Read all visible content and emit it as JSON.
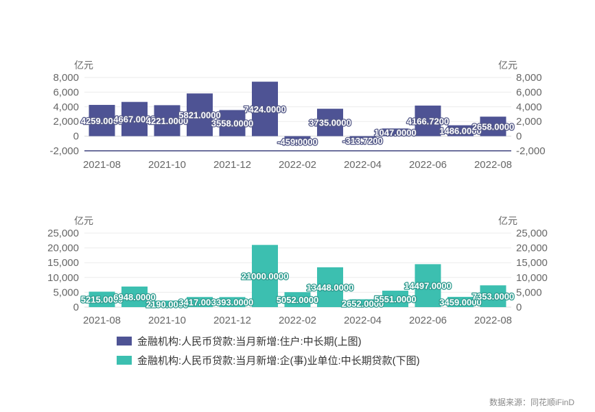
{
  "chart_data": [
    {
      "type": "bar",
      "name": "上图",
      "unit_left": "亿元",
      "unit_right": "亿元",
      "categories": [
        "2021-08",
        "2021-09",
        "2021-10",
        "2021-11",
        "2021-12",
        "2022-01",
        "2022-02",
        "2022-03",
        "2022-04",
        "2022-05",
        "2022-06",
        "2022-07",
        "2022-08"
      ],
      "x_tick_labels": [
        "2021-08",
        "2021-10",
        "2021-12",
        "2022-02",
        "2022-04",
        "2022-06",
        "2022-08"
      ],
      "values": [
        4259.0,
        4667.0,
        4221.0,
        5821.0,
        3558.0,
        7424.0,
        -459.0,
        3735.0,
        -313.72,
        1047.0,
        4166.72,
        1486.0,
        2658.0
      ],
      "data_labels": [
        "4259.0000",
        "4667.0000",
        "4221.0000",
        "5821.0000",
        "3558.0000",
        "7424.0000",
        "-459.0000",
        "3735.0000",
        "-313.7200",
        "1047.0000",
        "4166.7200",
        "1486.0000",
        "2658.0000"
      ],
      "y_ticks": [
        "8,000",
        "6,000",
        "4,000",
        "2,000",
        "0",
        "-2,000"
      ],
      "y_tick_values": [
        8000,
        6000,
        4000,
        2000,
        0,
        -2000
      ],
      "ylim": [
        -2000,
        8000
      ],
      "color": "#4e5394",
      "grid": true
    },
    {
      "type": "bar",
      "name": "下图",
      "unit_left": "亿元",
      "unit_right": "亿元",
      "categories": [
        "2021-08",
        "2021-09",
        "2021-10",
        "2021-11",
        "2021-12",
        "2022-01",
        "2022-02",
        "2022-03",
        "2022-04",
        "2022-05",
        "2022-06",
        "2022-07",
        "2022-08"
      ],
      "x_tick_labels": [
        "2021-08",
        "2021-10",
        "2021-12",
        "2022-02",
        "2022-04",
        "2022-06",
        "2022-08"
      ],
      "values": [
        5215.0,
        6948.0,
        2190.0,
        3417.0,
        3393.0,
        21000.0,
        5052.0,
        13448.0,
        2652.0,
        5551.0,
        14497.0,
        3459.0,
        7353.0
      ],
      "data_labels": [
        "5215.0000",
        "6948.0000",
        "2190.0000",
        "3417.0000",
        "3393.0000",
        "21000.0000",
        "5052.0000",
        "13448.0000",
        "2652.0000",
        "5551.0000",
        "14497.0000",
        "3459.0000",
        "7353.0000"
      ],
      "y_ticks": [
        "25,000",
        "20,000",
        "15,000",
        "10,000",
        "5,000",
        "0"
      ],
      "y_tick_values": [
        25000,
        20000,
        15000,
        10000,
        5000,
        0
      ],
      "ylim": [
        0,
        25000
      ],
      "color": "#3cbfb0",
      "grid": true
    }
  ],
  "legend": [
    {
      "label": "金融机构:人民币贷款:当月新增:住户:中长期(上图)",
      "color": "#4e5394"
    },
    {
      "label": "金融机构:人民币贷款:当月新增:企(事)业单位:中长期贷款(下图)",
      "color": "#3cbfb0"
    }
  ],
  "source": "数据来源：同花顺iFinD"
}
